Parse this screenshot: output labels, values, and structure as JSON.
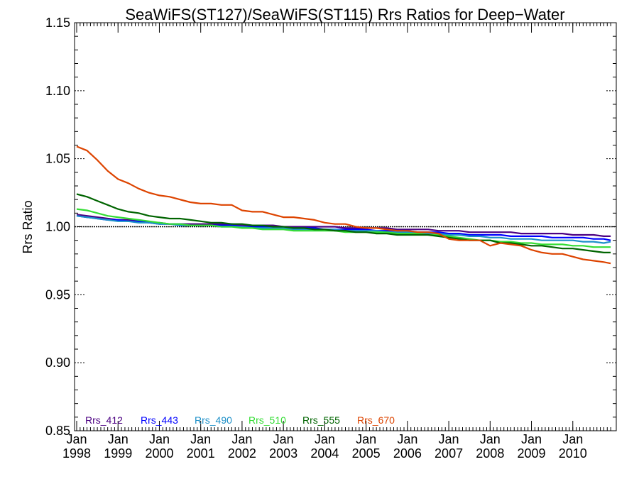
{
  "chart_data": {
    "type": "line",
    "title": "SeaWiFS(ST127)/SeaWiFS(ST115)  Rrs Ratios for Deep−Water",
    "ylabel": "Rrs Ratio",
    "xlabel": "",
    "ylim": [
      0.85,
      1.15
    ],
    "xlim": [
      "1998-01",
      "2010-12"
    ],
    "y_ticks": [
      "0.85",
      "0.90",
      "0.95",
      "1.00",
      "1.05",
      "1.10",
      "1.15"
    ],
    "x_ticks": [
      {
        "month": "Jan",
        "year": "1998"
      },
      {
        "month": "Jan",
        "year": "1999"
      },
      {
        "month": "Jan",
        "year": "2000"
      },
      {
        "month": "Jan",
        "year": "2001"
      },
      {
        "month": "Jan",
        "year": "2002"
      },
      {
        "month": "Jan",
        "year": "2003"
      },
      {
        "month": "Jan",
        "year": "2004"
      },
      {
        "month": "Jan",
        "year": "2005"
      },
      {
        "month": "Jan",
        "year": "2006"
      },
      {
        "month": "Jan",
        "year": "2007"
      },
      {
        "month": "Jan",
        "year": "2008"
      },
      {
        "month": "Jan",
        "year": "2009"
      },
      {
        "month": "Jan",
        "year": "2010"
      }
    ],
    "reference_line": 1.0,
    "x": [
      "1998-01",
      "1998-04",
      "1998-07",
      "1998-10",
      "1999-01",
      "1999-04",
      "1999-07",
      "1999-10",
      "2000-01",
      "2000-04",
      "2000-07",
      "2000-10",
      "2001-01",
      "2001-04",
      "2001-07",
      "2001-10",
      "2002-01",
      "2002-04",
      "2002-07",
      "2002-10",
      "2003-01",
      "2003-04",
      "2003-07",
      "2003-10",
      "2004-01",
      "2004-04",
      "2004-07",
      "2004-10",
      "2005-01",
      "2005-04",
      "2005-07",
      "2005-10",
      "2006-01",
      "2006-04",
      "2006-07",
      "2006-10",
      "2007-01",
      "2007-04",
      "2007-07",
      "2007-10",
      "2008-01",
      "2008-04",
      "2008-07",
      "2008-10",
      "2009-01",
      "2009-04",
      "2009-07",
      "2009-10",
      "2010-01",
      "2010-04",
      "2010-07",
      "2010-10",
      "2010-12"
    ],
    "series": [
      {
        "name": "Rrs_412",
        "color": "#4b0082",
        "values": [
          1.009,
          1.008,
          1.007,
          1.006,
          1.005,
          1.005,
          1.004,
          1.003,
          1.003,
          1.002,
          1.002,
          1.002,
          1.002,
          1.002,
          1.002,
          1.002,
          1.001,
          1.001,
          1.001,
          1.001,
          1.0,
          1.0,
          1.0,
          1.0,
          1.0,
          1.0,
          0.999,
          0.999,
          0.999,
          0.999,
          0.999,
          0.998,
          0.998,
          0.998,
          0.998,
          0.997,
          0.997,
          0.997,
          0.996,
          0.996,
          0.996,
          0.996,
          0.996,
          0.995,
          0.995,
          0.995,
          0.995,
          0.995,
          0.994,
          0.994,
          0.994,
          0.993,
          0.993
        ]
      },
      {
        "name": "Rrs_443",
        "color": "#0000ff",
        "values": [
          1.008,
          1.007,
          1.006,
          1.005,
          1.005,
          1.004,
          1.004,
          1.003,
          1.002,
          1.002,
          1.002,
          1.001,
          1.001,
          1.001,
          1.001,
          1.001,
          1.0,
          1.0,
          1.0,
          0.999,
          0.999,
          0.999,
          0.999,
          0.999,
          0.998,
          0.998,
          0.998,
          0.998,
          0.998,
          0.997,
          0.997,
          0.997,
          0.997,
          0.996,
          0.996,
          0.996,
          0.995,
          0.995,
          0.994,
          0.994,
          0.994,
          0.994,
          0.993,
          0.993,
          0.993,
          0.993,
          0.992,
          0.992,
          0.992,
          0.992,
          0.991,
          0.991,
          0.99
        ]
      },
      {
        "name": "Rrs_490",
        "color": "#1e90c8",
        "values": [
          1.008,
          1.007,
          1.006,
          1.005,
          1.004,
          1.004,
          1.003,
          1.003,
          1.002,
          1.002,
          1.001,
          1.001,
          1.001,
          1.001,
          1.0,
          1.0,
          1.0,
          0.999,
          0.999,
          0.999,
          0.999,
          0.998,
          0.998,
          0.998,
          0.998,
          0.998,
          0.997,
          0.997,
          0.997,
          0.997,
          0.996,
          0.996,
          0.996,
          0.996,
          0.995,
          0.995,
          0.994,
          0.994,
          0.993,
          0.993,
          0.992,
          0.992,
          0.991,
          0.991,
          0.991,
          0.99,
          0.99,
          0.99,
          0.99,
          0.989,
          0.989,
          0.988,
          0.989
        ]
      },
      {
        "name": "Rrs_510",
        "color": "#33dd33",
        "values": [
          1.013,
          1.012,
          1.01,
          1.008,
          1.007,
          1.006,
          1.005,
          1.004,
          1.003,
          1.002,
          1.002,
          1.001,
          1.001,
          1.001,
          1.0,
          1.0,
          0.999,
          0.999,
          0.998,
          0.998,
          0.998,
          0.997,
          0.997,
          0.997,
          0.997,
          0.997,
          0.996,
          0.996,
          0.996,
          0.996,
          0.996,
          0.995,
          0.995,
          0.995,
          0.994,
          0.994,
          0.993,
          0.992,
          0.991,
          0.99,
          0.99,
          0.989,
          0.989,
          0.988,
          0.988,
          0.987,
          0.987,
          0.987,
          0.986,
          0.986,
          0.985,
          0.985,
          0.985
        ]
      },
      {
        "name": "Rrs_555",
        "color": "#006400",
        "values": [
          1.024,
          1.022,
          1.019,
          1.016,
          1.013,
          1.011,
          1.01,
          1.008,
          1.007,
          1.006,
          1.006,
          1.005,
          1.004,
          1.003,
          1.003,
          1.002,
          1.002,
          1.001,
          1.001,
          1.0,
          1.0,
          0.999,
          0.999,
          0.998,
          0.998,
          0.997,
          0.997,
          0.996,
          0.996,
          0.995,
          0.995,
          0.994,
          0.994,
          0.994,
          0.994,
          0.993,
          0.992,
          0.991,
          0.99,
          0.99,
          0.99,
          0.988,
          0.988,
          0.987,
          0.986,
          0.986,
          0.985,
          0.984,
          0.984,
          0.983,
          0.982,
          0.981,
          0.981
        ]
      },
      {
        "name": "Rrs_670",
        "color": "#dd4400",
        "values": [
          1.059,
          1.056,
          1.049,
          1.041,
          1.035,
          1.032,
          1.028,
          1.025,
          1.023,
          1.022,
          1.02,
          1.018,
          1.017,
          1.017,
          1.016,
          1.016,
          1.012,
          1.011,
          1.011,
          1.009,
          1.007,
          1.007,
          1.006,
          1.005,
          1.003,
          1.002,
          1.002,
          1.0,
          0.999,
          0.999,
          0.998,
          0.997,
          0.997,
          0.996,
          0.996,
          0.995,
          0.991,
          0.99,
          0.99,
          0.99,
          0.986,
          0.988,
          0.987,
          0.986,
          0.983,
          0.981,
          0.98,
          0.98,
          0.978,
          0.976,
          0.975,
          0.974,
          0.973
        ]
      }
    ]
  }
}
